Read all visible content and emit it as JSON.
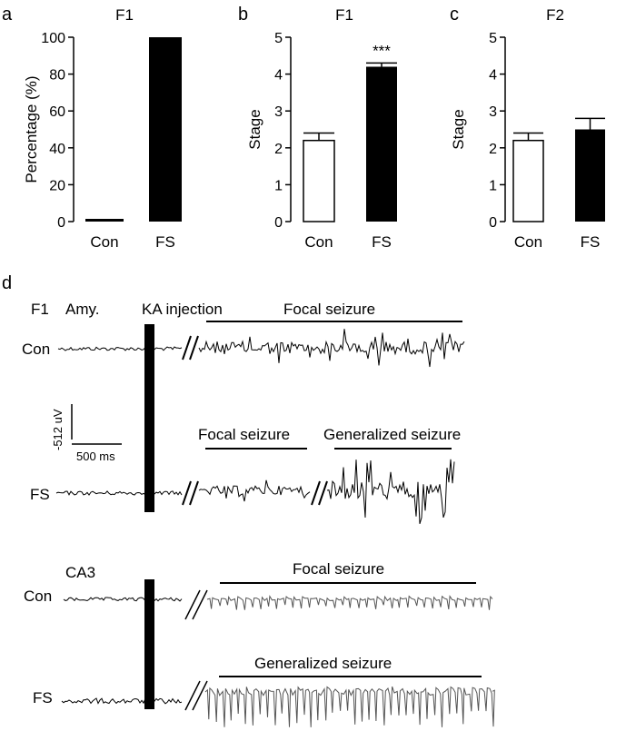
{
  "panel_letters": [
    "a",
    "b",
    "c",
    "d"
  ],
  "chart_data": [
    {
      "panel": "a",
      "type": "bar",
      "title": "F1",
      "xlabel": "",
      "ylabel": "Percentage (%)",
      "ylim": [
        0,
        100
      ],
      "yticks": [
        0,
        20,
        40,
        60,
        80,
        100
      ],
      "categories": [
        "Con",
        "FS"
      ],
      "values": [
        1,
        100
      ],
      "errors": [
        0,
        0
      ],
      "bar_fill": [
        "#000000",
        "#000000"
      ],
      "significance": ""
    },
    {
      "panel": "b",
      "type": "bar",
      "title": "F1",
      "xlabel": "",
      "ylabel": "Stage",
      "ylim": [
        0,
        5
      ],
      "yticks": [
        0,
        1,
        2,
        3,
        4,
        5
      ],
      "categories": [
        "Con",
        "FS"
      ],
      "values": [
        2.2,
        4.2
      ],
      "errors": [
        0.2,
        0.1
      ],
      "bar_fill": [
        "#ffffff",
        "#000000"
      ],
      "significance": "***"
    },
    {
      "panel": "c",
      "type": "bar",
      "title": "F2",
      "xlabel": "",
      "ylabel": "Stage",
      "ylim": [
        0,
        5
      ],
      "yticks": [
        0,
        1,
        2,
        3,
        4,
        5
      ],
      "categories": [
        "Con",
        "FS"
      ],
      "values": [
        2.2,
        2.5
      ],
      "errors": [
        0.2,
        0.3
      ],
      "bar_fill": [
        "#ffffff",
        "#000000"
      ],
      "significance": ""
    }
  ],
  "traces": {
    "header_f1": "F1",
    "header_amy": "Amy.",
    "ka_label": "KA injection",
    "con_label": "Con",
    "fs_label": "FS",
    "focal_label": "Focal seizure",
    "generalized_label": "Generalized seizure",
    "scale_y": "-512 uV",
    "scale_x": "500 ms",
    "ca3_label": "CA3",
    "ca3_con_label": "Con",
    "ca3_fs_label": "FS",
    "ca3_focal_label": "Focal seizure",
    "ca3_generalized_label": "Generalized seizure",
    "trace_color": "#000000",
    "ca3_trace_color": "#555555"
  }
}
